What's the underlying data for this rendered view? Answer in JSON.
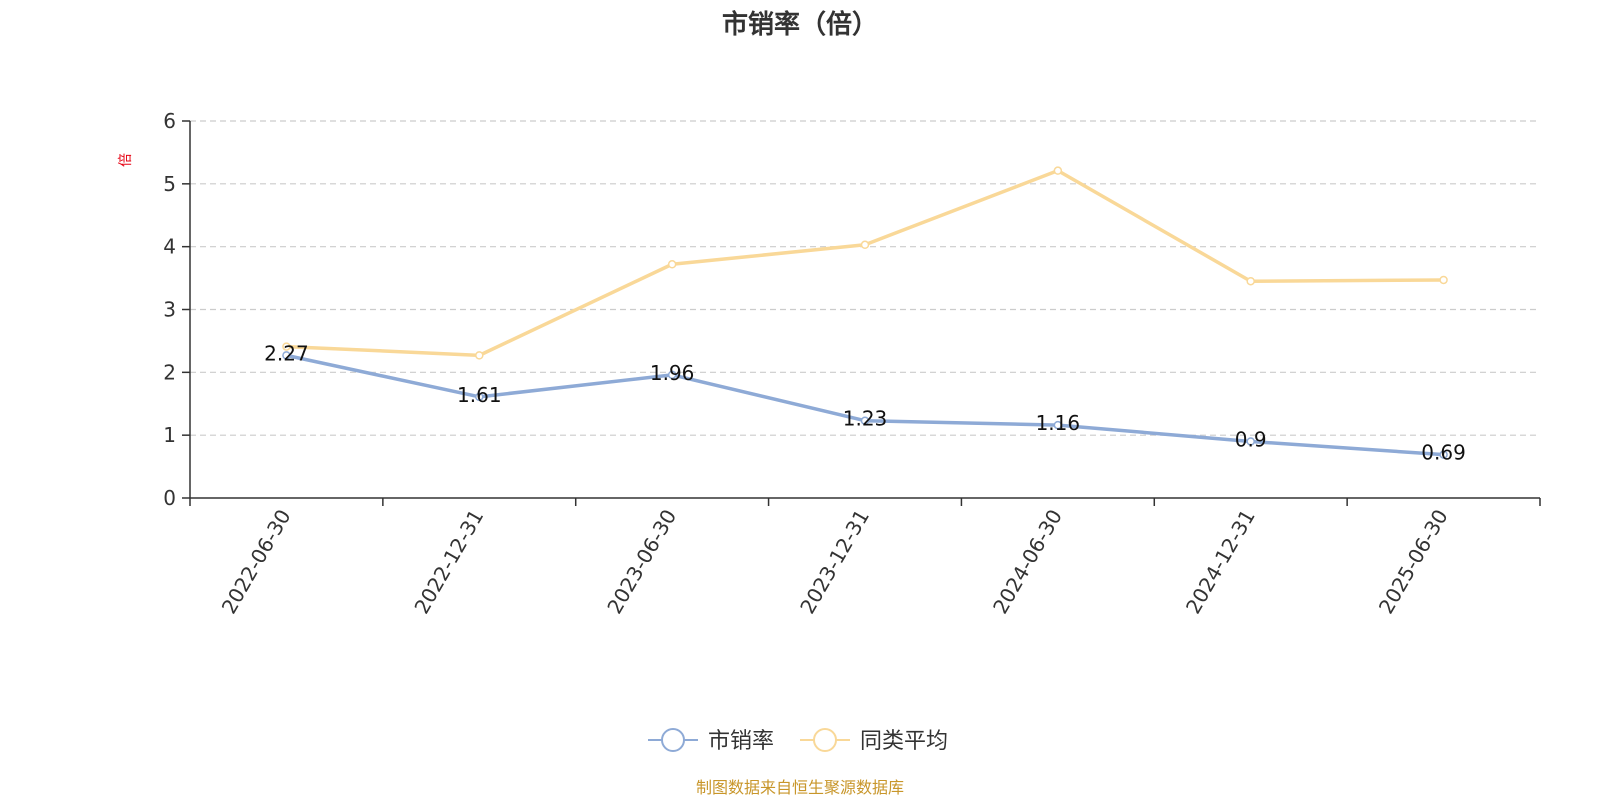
{
  "chart_data": {
    "type": "line",
    "title": "市销率（倍）",
    "unit_label": "倍",
    "categories": [
      "2022-06-30",
      "2022-12-31",
      "2023-06-30",
      "2023-12-31",
      "2024-06-30",
      "2024-12-31",
      "2025-06-30"
    ],
    "ylim": [
      0,
      6
    ],
    "yticks": [
      0,
      1,
      2,
      3,
      4,
      5,
      6
    ],
    "grid": true,
    "legend_position": "bottom-center",
    "series": [
      {
        "name": "市销率",
        "color": "#8eaad6",
        "values": [
          2.27,
          1.61,
          1.96,
          1.23,
          1.16,
          0.9,
          0.69
        ],
        "labels": [
          "2.27",
          "1.61",
          "1.96",
          "1.23",
          "1.16",
          "0.9",
          "0.69"
        ],
        "show_labels": true
      },
      {
        "name": "同类平均",
        "color": "#f9d898",
        "values": [
          2.41,
          2.27,
          3.72,
          4.03,
          5.21,
          3.45,
          3.47
        ],
        "show_labels": false
      }
    ],
    "source": "制图数据来自恒生聚源数据库"
  }
}
